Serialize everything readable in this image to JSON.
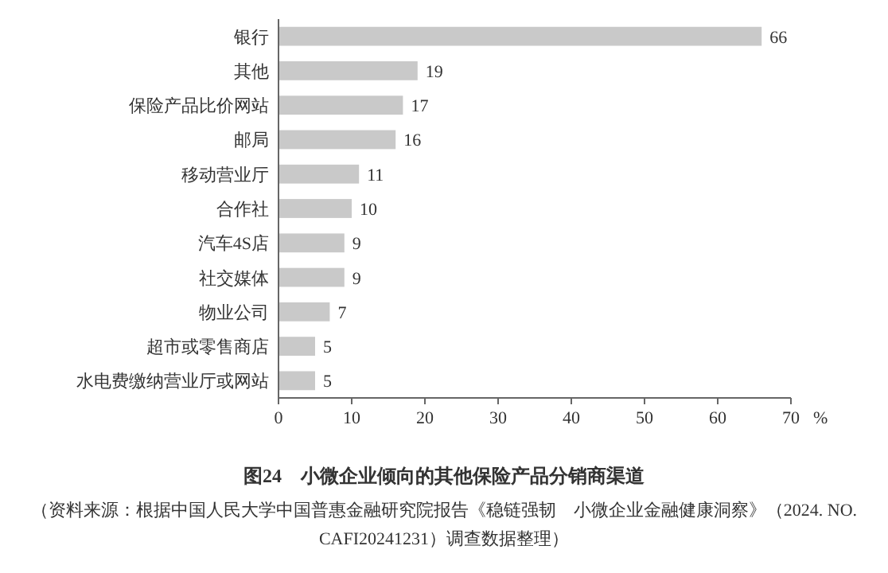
{
  "chart_data": {
    "type": "bar",
    "orientation": "horizontal",
    "title": "图24　小微企业倾向的其他保险产品分销商渠道",
    "categories": [
      "银行",
      "其他",
      "保险产品比价网站",
      "邮局",
      "移动营业厅",
      "合作社",
      "汽车4S店",
      "社交媒体",
      "物业公司",
      "超市或零售商店",
      "水电费缴纳营业厅或网站"
    ],
    "values": [
      66,
      19,
      17,
      16,
      11,
      10,
      9,
      9,
      7,
      5,
      5
    ],
    "color": "#c9c9c9",
    "xlim": [
      0,
      70
    ],
    "xticks": [
      0,
      10,
      20,
      30,
      40,
      50,
      60,
      70
    ],
    "xlabel": "%",
    "data_labels": true,
    "annotations": [
      "（资料来源：根据中国人民大学中国普惠金融研究院报告《稳链强韧　小微企业金融健康洞察》（2024. NO. CAFI20241231）调查数据整理）"
    ]
  }
}
